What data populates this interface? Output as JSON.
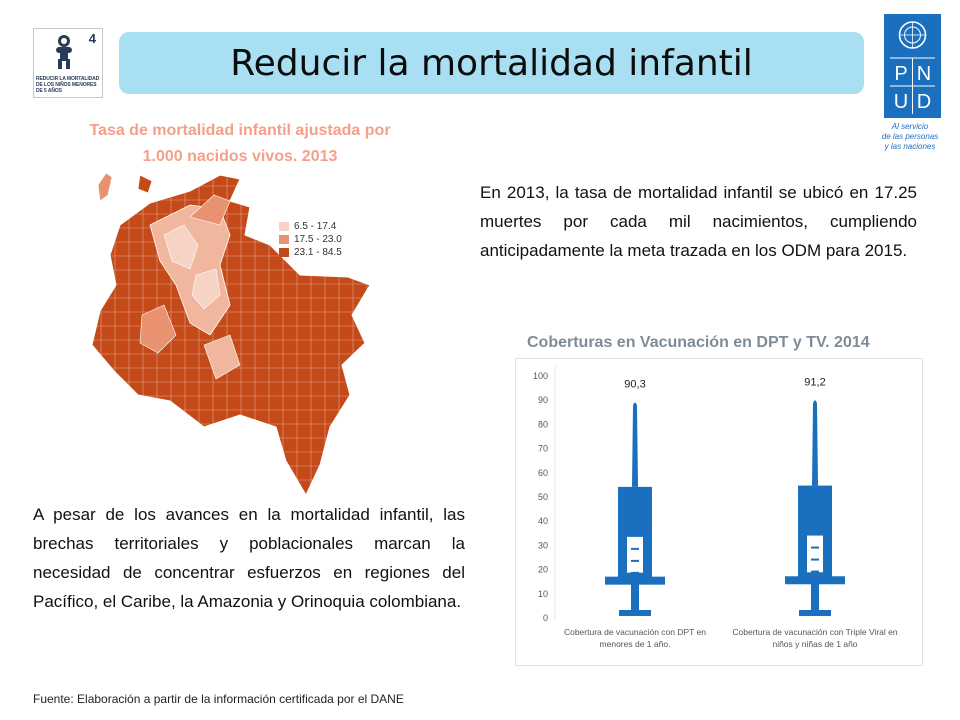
{
  "header": {
    "title": "Reducir la mortalidad infantil",
    "goal_number": "4",
    "goal_caption": "REDUCIR LA MORTALIDAD DE LOS NIÑOS MENORES DE 5 AÑOS"
  },
  "logo": {
    "letters": [
      "P",
      "N",
      "U",
      "D"
    ],
    "tagline_1": "Al servicio",
    "tagline_2": "de las personas",
    "tagline_3": "y las naciones"
  },
  "map": {
    "title_line1": "Tasa de mortalidad infantil ajustada por",
    "title_line2": "1.000 nacidos vivos. 2013",
    "legend": [
      {
        "label": "6.5 - 17.4",
        "color": "#f6d3c4"
      },
      {
        "label": "17.5 - 23.0",
        "color": "#e89270"
      },
      {
        "label": "23.1 - 84.5",
        "color": "#c44a1a"
      }
    ]
  },
  "texts": {
    "para1": "En 2013, la tasa de mortalidad infantil se ubicó en 17.25 muertes por cada mil nacimientos, cumpliendo anticipadamente la meta trazada en los ODM para 2015.",
    "para2": "A pesar de los avances en la mortalidad infantil, las brechas territoriales y poblacionales marcan la necesidad de concentrar esfuerzos en regiones del Pacífico, el Caribe, la Amazonia y Orinoquia colombiana.",
    "source": "Fuente: Elaboración a partir de la información certificada por el DANE"
  },
  "chart_data": {
    "type": "bar",
    "title": "Coberturas en Vacunación en DPT y TV. 2014",
    "categories": [
      "Cobertura de vacunación con DPT en menores de 1 año.",
      "Cobertura de vacunación con Triple Viral en niños y niñas de 1 año"
    ],
    "category_lines": [
      [
        "Cobertura de vacunación con DPT en",
        "menores de 1 año."
      ],
      [
        "Cobertura de vacunación con Triple Viral en",
        "niños y niñas de 1 año"
      ]
    ],
    "values": [
      90.3,
      91.2
    ],
    "value_labels": [
      "90,3",
      "91,2"
    ],
    "yticks": [
      0,
      10,
      20,
      30,
      40,
      50,
      60,
      70,
      80,
      90,
      100
    ],
    "ylim": [
      0,
      100
    ],
    "bar_style": "syringe",
    "color": "#1b6fbf"
  }
}
